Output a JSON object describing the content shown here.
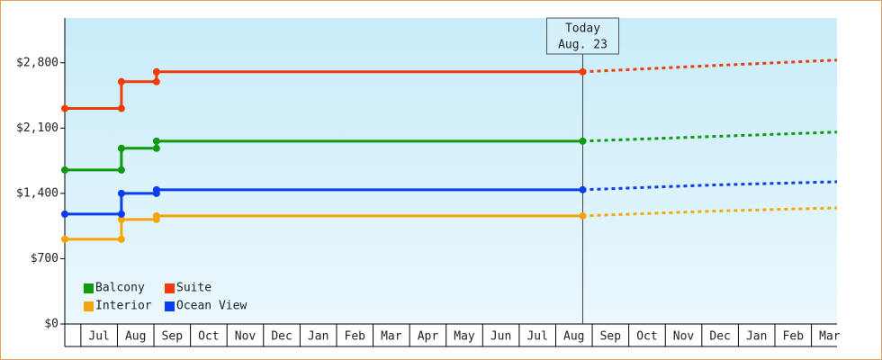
{
  "chart_data": {
    "type": "step-line",
    "ylim": [
      0,
      3280
    ],
    "yticks": [
      {
        "value": 0,
        "label": "$0"
      },
      {
        "value": 700,
        "label": "$700"
      },
      {
        "value": 1400,
        "label": "$1,400"
      },
      {
        "value": 2100,
        "label": "$2,100"
      },
      {
        "value": 2800,
        "label": "$2,800"
      }
    ],
    "xlim": [
      -0.44,
      20.7
    ],
    "xticks": [
      {
        "value": 0.5,
        "label": "Jul"
      },
      {
        "value": 1.5,
        "label": "Aug"
      },
      {
        "value": 2.5,
        "label": "Sep"
      },
      {
        "value": 3.5,
        "label": "Oct"
      },
      {
        "value": 4.5,
        "label": "Nov"
      },
      {
        "value": 5.5,
        "label": "Dec"
      },
      {
        "value": 6.5,
        "label": "Jan"
      },
      {
        "value": 7.5,
        "label": "Feb"
      },
      {
        "value": 8.5,
        "label": "Mar"
      },
      {
        "value": 9.5,
        "label": "Apr"
      },
      {
        "value": 10.5,
        "label": "May"
      },
      {
        "value": 11.5,
        "label": "Jun"
      },
      {
        "value": 12.5,
        "label": "Jul"
      },
      {
        "value": 13.5,
        "label": "Aug"
      },
      {
        "value": 14.5,
        "label": "Sep"
      },
      {
        "value": 15.5,
        "label": "Oct"
      },
      {
        "value": 16.5,
        "label": "Nov"
      },
      {
        "value": 17.5,
        "label": "Dec"
      },
      {
        "value": 18.5,
        "label": "Jan"
      },
      {
        "value": 19.5,
        "label": "Feb"
      },
      {
        "value": 20.5,
        "label": "Mar"
      }
    ],
    "annotation": {
      "x": 13.74,
      "lines": [
        "Today",
        "Aug. 23"
      ]
    },
    "legend": "lower left",
    "series": [
      {
        "name": "Balcony",
        "color": "#0f9a0f",
        "x": [
          -0.44,
          1.11,
          1.11,
          2.07,
          2.07,
          13.74
        ],
        "values": [
          1651,
          1651,
          1883,
          1883,
          1960,
          1960
        ],
        "forecast_x": [
          13.74,
          17.3,
          20.7
        ],
        "forecast_values": [
          1960,
          2010,
          2057
        ]
      },
      {
        "name": "Suite",
        "color": "#f03c0a",
        "x": [
          -0.44,
          1.11,
          1.11,
          2.07,
          2.07,
          13.74
        ],
        "values": [
          2310,
          2310,
          2597,
          2597,
          2703,
          2703
        ],
        "forecast_x": [
          13.74,
          17.3,
          20.7
        ],
        "forecast_values": [
          2703,
          2770,
          2829
        ]
      },
      {
        "name": "Interior",
        "color": "#f5a40a",
        "x": [
          -0.44,
          1.11,
          1.11,
          2.07,
          2.07,
          13.74
        ],
        "values": [
          908,
          908,
          1120,
          1120,
          1159,
          1159
        ],
        "forecast_x": [
          13.74,
          17.3,
          20.7
        ],
        "forecast_values": [
          1159,
          1210,
          1245
        ]
      },
      {
        "name": "Ocean View",
        "color": "#0a3cf0",
        "x": [
          -0.44,
          1.11,
          1.11,
          2.07,
          2.07,
          13.74
        ],
        "values": [
          1178,
          1178,
          1400,
          1400,
          1439,
          1439
        ],
        "forecast_x": [
          13.74,
          17.3,
          20.7
        ],
        "forecast_values": [
          1439,
          1490,
          1525
        ]
      }
    ]
  }
}
